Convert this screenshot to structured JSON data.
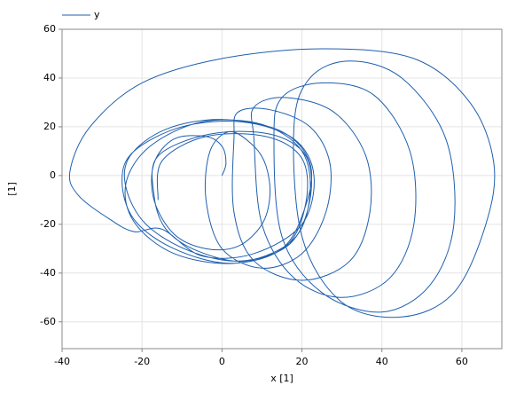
{
  "chart_data": {
    "type": "line",
    "xlabel": "x [1]",
    "ylabel": "[1]",
    "xlim": [
      -40,
      70
    ],
    "ylim": [
      -71,
      60
    ],
    "xticks": [
      -40,
      -20,
      0,
      20,
      40,
      60
    ],
    "yticks": [
      -60,
      -40,
      -20,
      0,
      20,
      40,
      60
    ],
    "grid": true,
    "legend": "top-left",
    "series": [
      {
        "name": "y",
        "color": "#1f5fae",
        "x": [
          0,
          1,
          0,
          -4,
          -12,
          -17,
          -17,
          -12,
          -4,
          4,
          10,
          12,
          11,
          8,
          2,
          -3,
          -4,
          0,
          10,
          20,
          26,
          27,
          22,
          12,
          4,
          3,
          3,
          8,
          20,
          32,
          37,
          36,
          28,
          16,
          8,
          8,
          10,
          18,
          30,
          42,
          48,
          47,
          38,
          25,
          15,
          13,
          15,
          25,
          40,
          52,
          58,
          56,
          45,
          32,
          22,
          18,
          20,
          30,
          45,
          58,
          66,
          68,
          62,
          48,
          25,
          0,
          -20,
          -33,
          -38,
          -36,
          -28,
          -22,
          -15,
          -5,
          8,
          20,
          23,
          18,
          5,
          -10,
          -22,
          -25,
          -22,
          -12,
          2,
          15,
          21,
          22,
          15,
          0,
          -14,
          -23,
          -24,
          -19,
          -8,
          5,
          17,
          22,
          21,
          12,
          -3,
          -16,
          -17,
          -14,
          -6,
          6,
          18,
          22,
          20,
          10,
          -5,
          -18,
          -24,
          -22,
          -12,
          3,
          16,
          21,
          20,
          11,
          -4,
          -15,
          -16
        ],
        "values": [
          0,
          5,
          12,
          16,
          15,
          5,
          -10,
          -24,
          -30,
          -29,
          -20,
          -8,
          4,
          12,
          18,
          10,
          -10,
          -30,
          -38,
          -32,
          -15,
          5,
          20,
          27,
          26,
          15,
          -15,
          -35,
          -43,
          -35,
          -15,
          8,
          26,
          32,
          28,
          15,
          -20,
          -42,
          -50,
          -42,
          -20,
          10,
          33,
          38,
          32,
          15,
          -25,
          -48,
          -56,
          -45,
          -20,
          15,
          40,
          47,
          40,
          20,
          -25,
          -52,
          -58,
          -48,
          -20,
          5,
          30,
          48,
          52,
          48,
          38,
          20,
          2,
          -8,
          -18,
          -23,
          -22,
          -33,
          -32,
          -20,
          0,
          15,
          22,
          20,
          10,
          -2,
          -18,
          -30,
          -36,
          -30,
          -12,
          5,
          18,
          23,
          19,
          8,
          -5,
          -20,
          -31,
          -35,
          -28,
          -10,
          8,
          17,
          17,
          8,
          -8,
          -22,
          -31,
          -35,
          -26,
          -8,
          10,
          21,
          22,
          12,
          -3,
          -19,
          -32,
          -36,
          -29,
          -11,
          7,
          16,
          16,
          6,
          -10
        ]
      }
    ]
  }
}
